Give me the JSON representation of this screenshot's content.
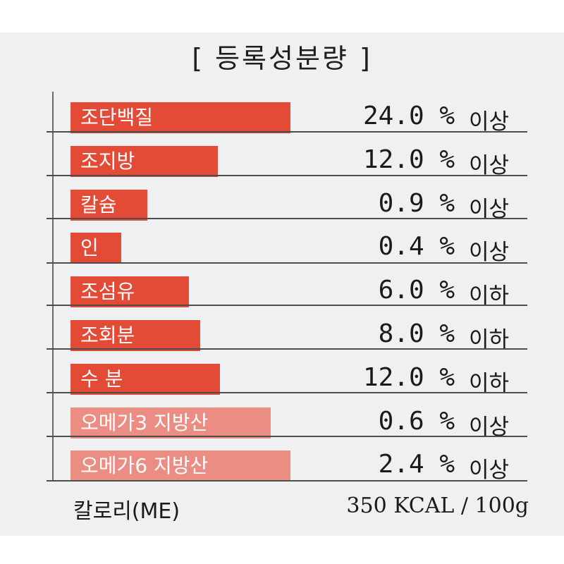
{
  "title": "[ 등록성분량 ]",
  "colors": {
    "primary_bar": "#e34b37",
    "light_bar": "#ec8d84"
  },
  "rows": [
    {
      "name": "조단백질",
      "value": "24.0 %",
      "qualifier": "이상",
      "bar_level": 1.0
    },
    {
      "name": "조지방",
      "value": "12.0 %",
      "qualifier": "이상",
      "bar_level": 0.67
    },
    {
      "name": "칼슘",
      "value": "0.9 %",
      "qualifier": "이상",
      "bar_level": 0.35
    },
    {
      "name": "인",
      "value": "0.4 %",
      "qualifier": "이상",
      "bar_level": 0.23
    },
    {
      "name": "조섬유",
      "value": "6.0 %",
      "qualifier": "이하",
      "bar_level": 0.54
    },
    {
      "name": "조회분",
      "value": "8.0 %",
      "qualifier": "이하",
      "bar_level": 0.59
    },
    {
      "name": "수  분",
      "value": "12.0 %",
      "qualifier": "이하",
      "bar_level": 0.68
    },
    {
      "name": "오메가3 지방산",
      "value": "0.6 %",
      "qualifier": "이상",
      "bar_level": 0.91
    },
    {
      "name": "오메가6 지방산",
      "value": "2.4 %",
      "qualifier": "이상",
      "bar_level": 1.0
    }
  ],
  "footer": {
    "label": "칼로리(ME)",
    "value": "350 KCAL / 100g"
  }
}
